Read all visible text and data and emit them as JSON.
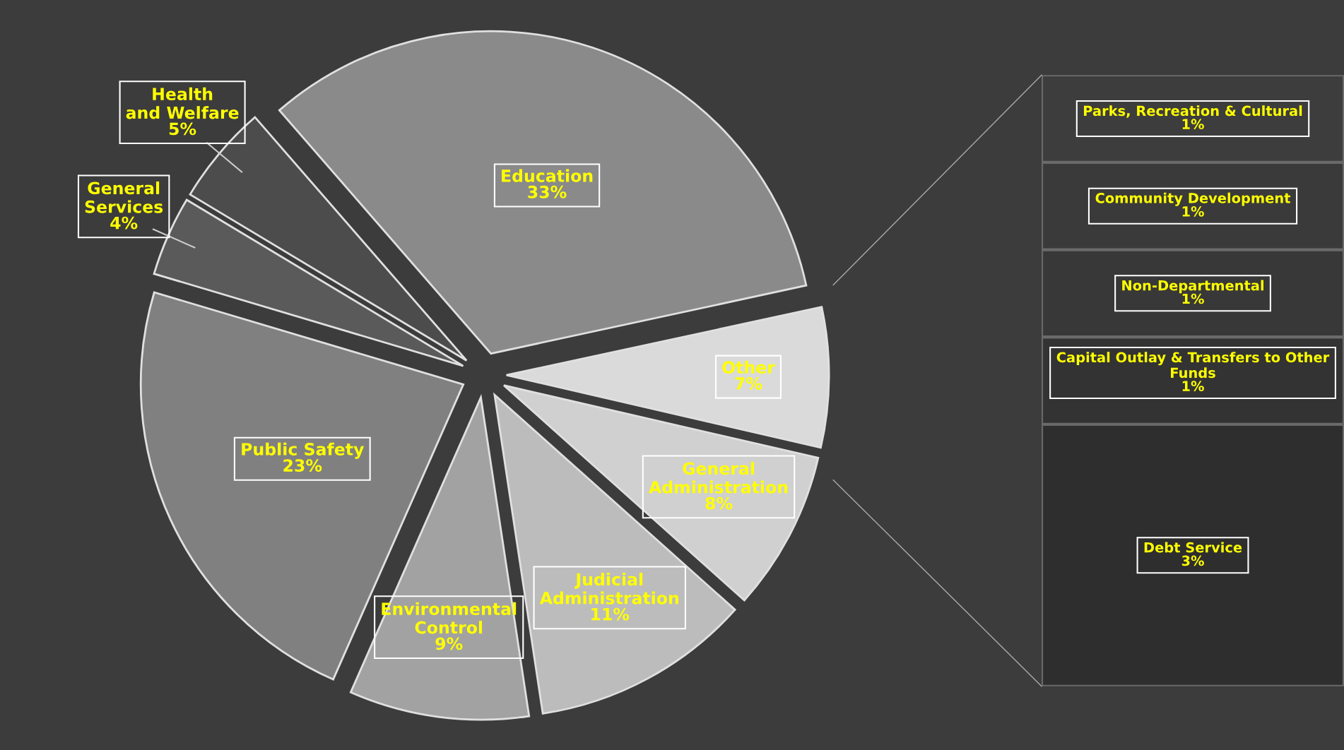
{
  "chart_data": [
    {
      "type": "pie",
      "categories": [
        "Education",
        "Other",
        "General Administration",
        "Judicial Administration",
        "Environmental Control",
        "Public Safety",
        "General Services",
        "Health and Welfare"
      ],
      "values": [
        33,
        7,
        8,
        11,
        9,
        23,
        4,
        5
      ],
      "value_labels": [
        "33%",
        "7%",
        "8%",
        "11%",
        "9%",
        "23%",
        "4%",
        "5%"
      ],
      "colors": [
        "#8a8a8a",
        "#dadada",
        "#d0d0d0",
        "#bcbcbc",
        "#a2a2a2",
        "#808080",
        "#5a5a5a",
        "#4c4c4c"
      ]
    },
    {
      "type": "bar",
      "stacked": true,
      "categories": [
        null
      ],
      "series": [
        {
          "name": "Debt Service",
          "color": "#2e2e2e",
          "values": [
            3
          ],
          "value_labels": [
            "3%"
          ]
        },
        {
          "name": "Capital Outlay & Transfers to Other Funds",
          "color": "#333333",
          "values": [
            1
          ],
          "value_labels": [
            "1%"
          ]
        },
        {
          "name": "Non-Departmental",
          "color": "#383838",
          "values": [
            1
          ],
          "value_labels": [
            "1%"
          ]
        },
        {
          "name": "Community Development",
          "color": "#3a3a3a",
          "values": [
            1
          ],
          "value_labels": [
            "1%"
          ]
        },
        {
          "name": "Parks, Recreation & Cultural",
          "color": "#3d3d3d",
          "values": [
            1
          ],
          "value_labels": [
            "1%"
          ]
        }
      ]
    }
  ]
}
